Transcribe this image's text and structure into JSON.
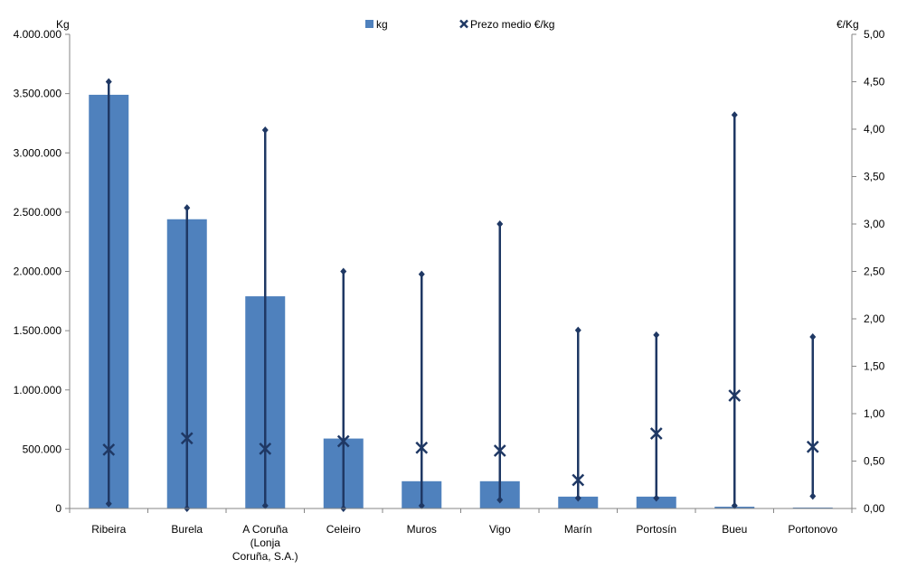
{
  "chart_data": {
    "type": "bar",
    "categories": [
      [
        "Ribeira"
      ],
      [
        "Burela"
      ],
      [
        "A Coruña",
        "(Lonja",
        "Coruña, S.A.)"
      ],
      [
        "Celeiro"
      ],
      [
        "Muros"
      ],
      [
        "Vigo"
      ],
      [
        "Marín"
      ],
      [
        "Portosín"
      ],
      [
        "Bueu"
      ],
      [
        "Portonovo"
      ]
    ],
    "series": [
      {
        "name": "kg",
        "type": "bar",
        "axis": "left",
        "color": "#4F81BD",
        "values": [
          3490000,
          2440000,
          1790000,
          590000,
          230000,
          230000,
          100000,
          100000,
          15000,
          8000
        ]
      },
      {
        "name": "Prezo medio €/kg",
        "type": "marker-x",
        "axis": "right",
        "color": "#1F3864",
        "values": [
          0.62,
          0.74,
          0.63,
          0.71,
          0.64,
          0.61,
          0.3,
          0.79,
          1.19,
          0.65
        ]
      }
    ],
    "price_range": {
      "color": "#1F3864",
      "min": [
        0.05,
        0.0,
        0.03,
        0.0,
        0.03,
        0.09,
        0.11,
        0.11,
        0.03,
        0.13
      ],
      "max": [
        4.5,
        3.17,
        3.99,
        2.5,
        2.47,
        3.0,
        1.88,
        1.83,
        4.15,
        1.81
      ]
    },
    "left_axis": {
      "label": "Kg",
      "min": 0,
      "max": 4000000,
      "ticks": [
        0,
        500000,
        1000000,
        1500000,
        2000000,
        2500000,
        3000000,
        3500000,
        4000000
      ],
      "tick_labels": [
        "0",
        "500.000",
        "1.000.000",
        "1.500.000",
        "2.000.000",
        "2.500.000",
        "3.000.000",
        "3.500.000",
        "4.000.000"
      ]
    },
    "right_axis": {
      "label": "€/Kg",
      "min": 0,
      "max": 5,
      "ticks": [
        0,
        0.5,
        1,
        1.5,
        2,
        2.5,
        3,
        3.5,
        4,
        4.5,
        5
      ],
      "tick_labels": [
        "0,00",
        "0,50",
        "1,00",
        "1,50",
        "2,00",
        "2,50",
        "3,00",
        "3,50",
        "4,00",
        "4,50",
        "5,00"
      ]
    },
    "legend": {
      "position": "top-center",
      "entries": [
        "kg",
        "Prezo medio €/kg"
      ]
    },
    "grid": false
  }
}
